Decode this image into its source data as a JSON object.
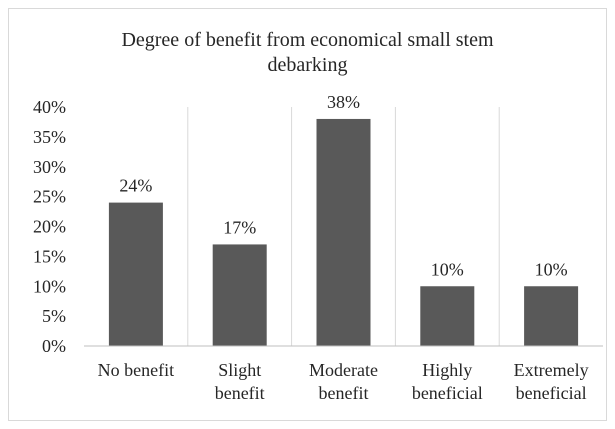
{
  "chart_data": {
    "type": "bar",
    "title_lines": [
      "Degree of benefit from economical small stem",
      "debarking"
    ],
    "title": "Degree of benefit from economical small stem debarking",
    "categories": [
      [
        "No benefit"
      ],
      [
        "Slight",
        "benefit"
      ],
      [
        "Moderate",
        "benefit"
      ],
      [
        "Highly",
        "beneficial"
      ],
      [
        "Extremely",
        "beneficial"
      ]
    ],
    "values": [
      24,
      17,
      38,
      10,
      10
    ],
    "data_labels": [
      "24%",
      "17%",
      "38%",
      "10%",
      "10%"
    ],
    "y_ticks": [
      "0%",
      "5%",
      "10%",
      "15%",
      "20%",
      "25%",
      "30%",
      "35%",
      "40%"
    ],
    "ylim": [
      0,
      40
    ],
    "y_unit": "%",
    "xlabel": "",
    "ylabel": "",
    "grid": "vertical separators between categories",
    "legend": "none",
    "colors": {
      "bar": "#595959",
      "axis": "#bfbfbf",
      "grid": "#d9d9d9",
      "text": "#262626",
      "border": "#d9d9d9"
    }
  }
}
